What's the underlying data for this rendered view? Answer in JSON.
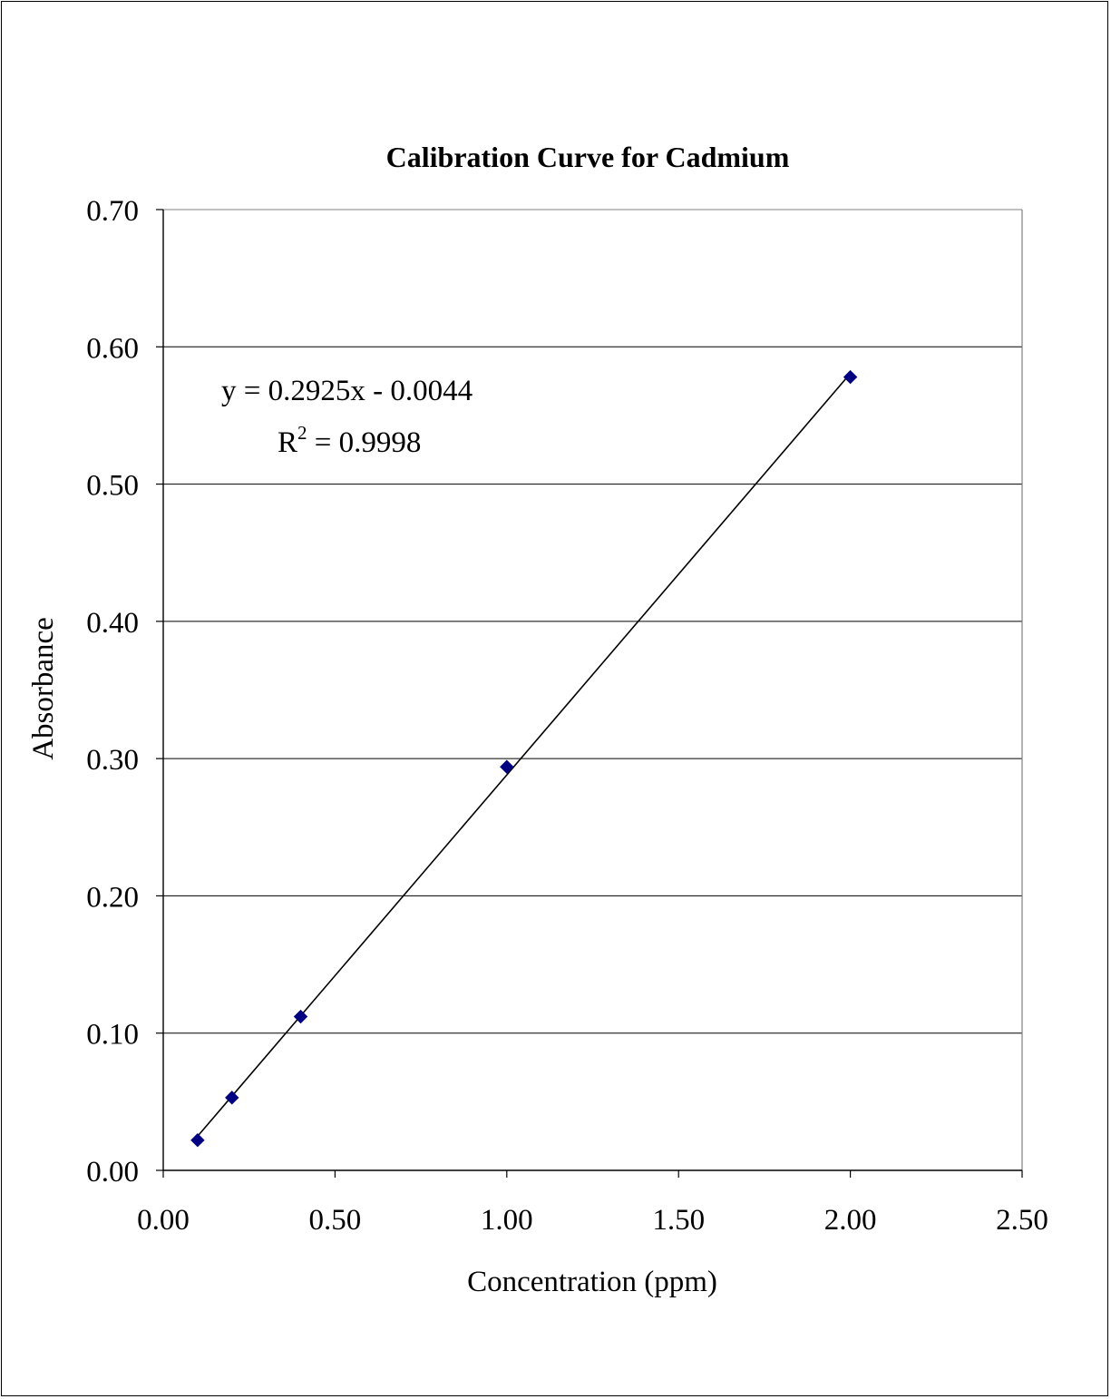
{
  "chart_data": {
    "type": "scatter",
    "title": "Calibration Curve for Cadmium",
    "xlabel": "Concentration (ppm)",
    "ylabel": "Absorbance",
    "xlim": [
      0,
      2.5
    ],
    "ylim": [
      0,
      0.7
    ],
    "xticks": [
      "0.00",
      "0.50",
      "1.00",
      "1.50",
      "2.00",
      "2.50"
    ],
    "yticks": [
      "0.00",
      "0.10",
      "0.20",
      "0.30",
      "0.40",
      "0.50",
      "0.60",
      "0.70"
    ],
    "grid": {
      "horizontal": true,
      "vertical": false
    },
    "legend": "none",
    "series": [
      {
        "x": [
          0.1,
          0.2,
          0.4,
          1.0,
          2.0
        ],
        "y": [
          0.022,
          0.053,
          0.112,
          0.294,
          0.578
        ],
        "marker": "diamond",
        "color": "#000080"
      }
    ],
    "trendline": {
      "type": "linear",
      "slope": 0.2925,
      "intercept": -0.0044,
      "x_range": [
        0.1,
        2.0
      ],
      "color": "#000000",
      "equation_label": "y = 0.2925x - 0.0044",
      "r2_label_prefix": "R",
      "r2_label_sup": "2",
      "r2_label_value": " = 0.9998"
    }
  }
}
